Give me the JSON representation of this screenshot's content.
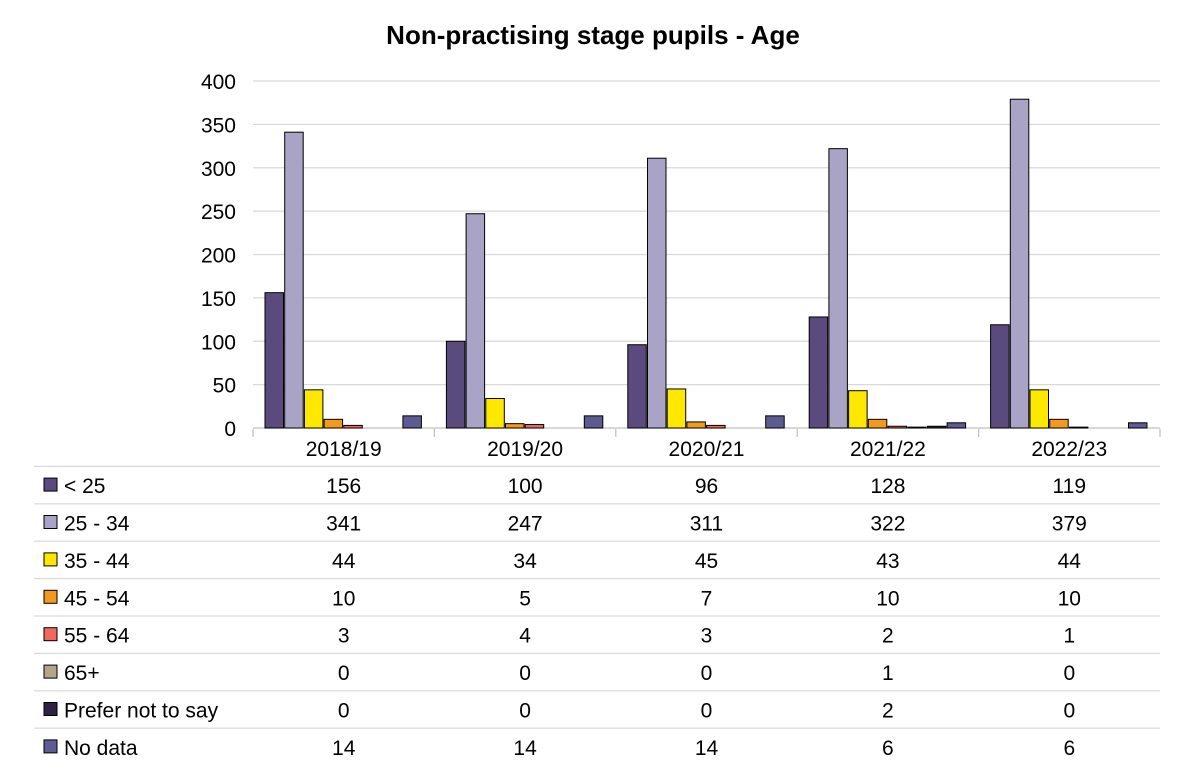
{
  "chart_data": {
    "type": "bar",
    "title": "Non-practising stage pupils - Age",
    "xlabel": "",
    "ylabel": "",
    "ylim": [
      0,
      400
    ],
    "yticks": [
      0,
      50,
      100,
      150,
      200,
      250,
      300,
      350,
      400
    ],
    "grid": true,
    "legend": "data-table-below",
    "categories": [
      "2018/19",
      "2019/20",
      "2020/21",
      "2021/22",
      "2022/23"
    ],
    "series": [
      {
        "name": "< 25",
        "color": "#5B4A7E",
        "values": [
          156,
          100,
          96,
          128,
          119
        ]
      },
      {
        "name": "25 - 34",
        "color": "#A9A3C6",
        "values": [
          341,
          247,
          311,
          322,
          379
        ]
      },
      {
        "name": "35 - 44",
        "color": "#FFE800",
        "values": [
          44,
          34,
          45,
          43,
          44
        ]
      },
      {
        "name": "45 - 54",
        "color": "#F29A1C",
        "values": [
          10,
          5,
          7,
          10,
          10
        ]
      },
      {
        "name": "55 - 64",
        "color": "#F2675E",
        "values": [
          3,
          4,
          3,
          2,
          1
        ]
      },
      {
        "name": "65+",
        "color": "#B3A58C",
        "values": [
          0,
          0,
          0,
          1,
          0
        ]
      },
      {
        "name": "Prefer not to say",
        "color": "#2E2342",
        "values": [
          0,
          0,
          0,
          2,
          0
        ]
      },
      {
        "name": "No data",
        "color": "#5E5A92",
        "values": [
          14,
          14,
          14,
          6,
          6
        ]
      }
    ]
  }
}
